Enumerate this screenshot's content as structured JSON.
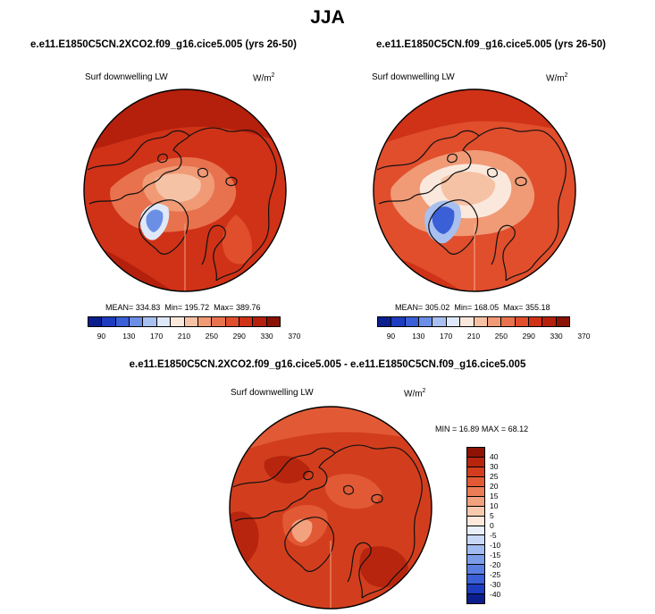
{
  "title": "JJA",
  "colors": {
    "abs_scale": [
      "#0a1e8c",
      "#1e3cbf",
      "#3a5fd6",
      "#6c8fe6",
      "#a8c0f0",
      "#dfe8f8",
      "#fbe8dc",
      "#f6c2a5",
      "#f09a76",
      "#e8724e",
      "#e04e2c",
      "#cf3217",
      "#b4200c",
      "#8a1204"
    ],
    "diff_scale": [
      "#0a1e8c",
      "#1e3cbf",
      "#3a5fd6",
      "#5a7fe0",
      "#7b9de8",
      "#a0bbf0",
      "#c8d8f6",
      "#e8eff9",
      "#fde8dc",
      "#f8c9ae",
      "#f2a27e",
      "#eb7d56",
      "#e25a35",
      "#d23e1d",
      "#b8250e",
      "#8e1304"
    ]
  },
  "panels": [
    {
      "case": "e.e11.E1850C5CN.2XCO2.f09_g16.cice5.005 (yrs 26-50)",
      "variable": "Surf downwelling LW",
      "units": "W/m",
      "units_exp": "2",
      "mean_label": "MEAN=",
      "mean": "334.83",
      "min_label": "Min=",
      "min": "195.72",
      "max_label": "Max=",
      "max": "389.76",
      "ticks": [
        "90",
        "130",
        "170",
        "210",
        "250",
        "290",
        "330",
        "370"
      ]
    },
    {
      "case": "e.e11.E1850C5CN.f09_g16.cice5.005 (yrs 26-50)",
      "variable": "Surf downwelling LW",
      "units": "W/m",
      "units_exp": "2",
      "mean_label": "MEAN=",
      "mean": "305.02",
      "min_label": "Min=",
      "min": "168.05",
      "max_label": "Max=",
      "max": "355.18",
      "ticks": [
        "90",
        "130",
        "170",
        "210",
        "250",
        "290",
        "330",
        "370"
      ]
    }
  ],
  "diff": {
    "case": "e.e11.E1850C5CN.2XCO2.f09_g16.cice5.005 - e.e11.E1850C5CN.f09_g16.cice5.005",
    "variable": "Surf downwelling LW",
    "units": "W/m",
    "units_exp": "2",
    "min_label": "MIN =",
    "min": "16.89",
    "max_label": "MAX =",
    "max": "68.12",
    "ticks": [
      "40",
      "30",
      "25",
      "20",
      "15",
      "10",
      "5",
      "0",
      "-5",
      "-10",
      "-15",
      "-20",
      "-25",
      "-30",
      "-40"
    ]
  }
}
